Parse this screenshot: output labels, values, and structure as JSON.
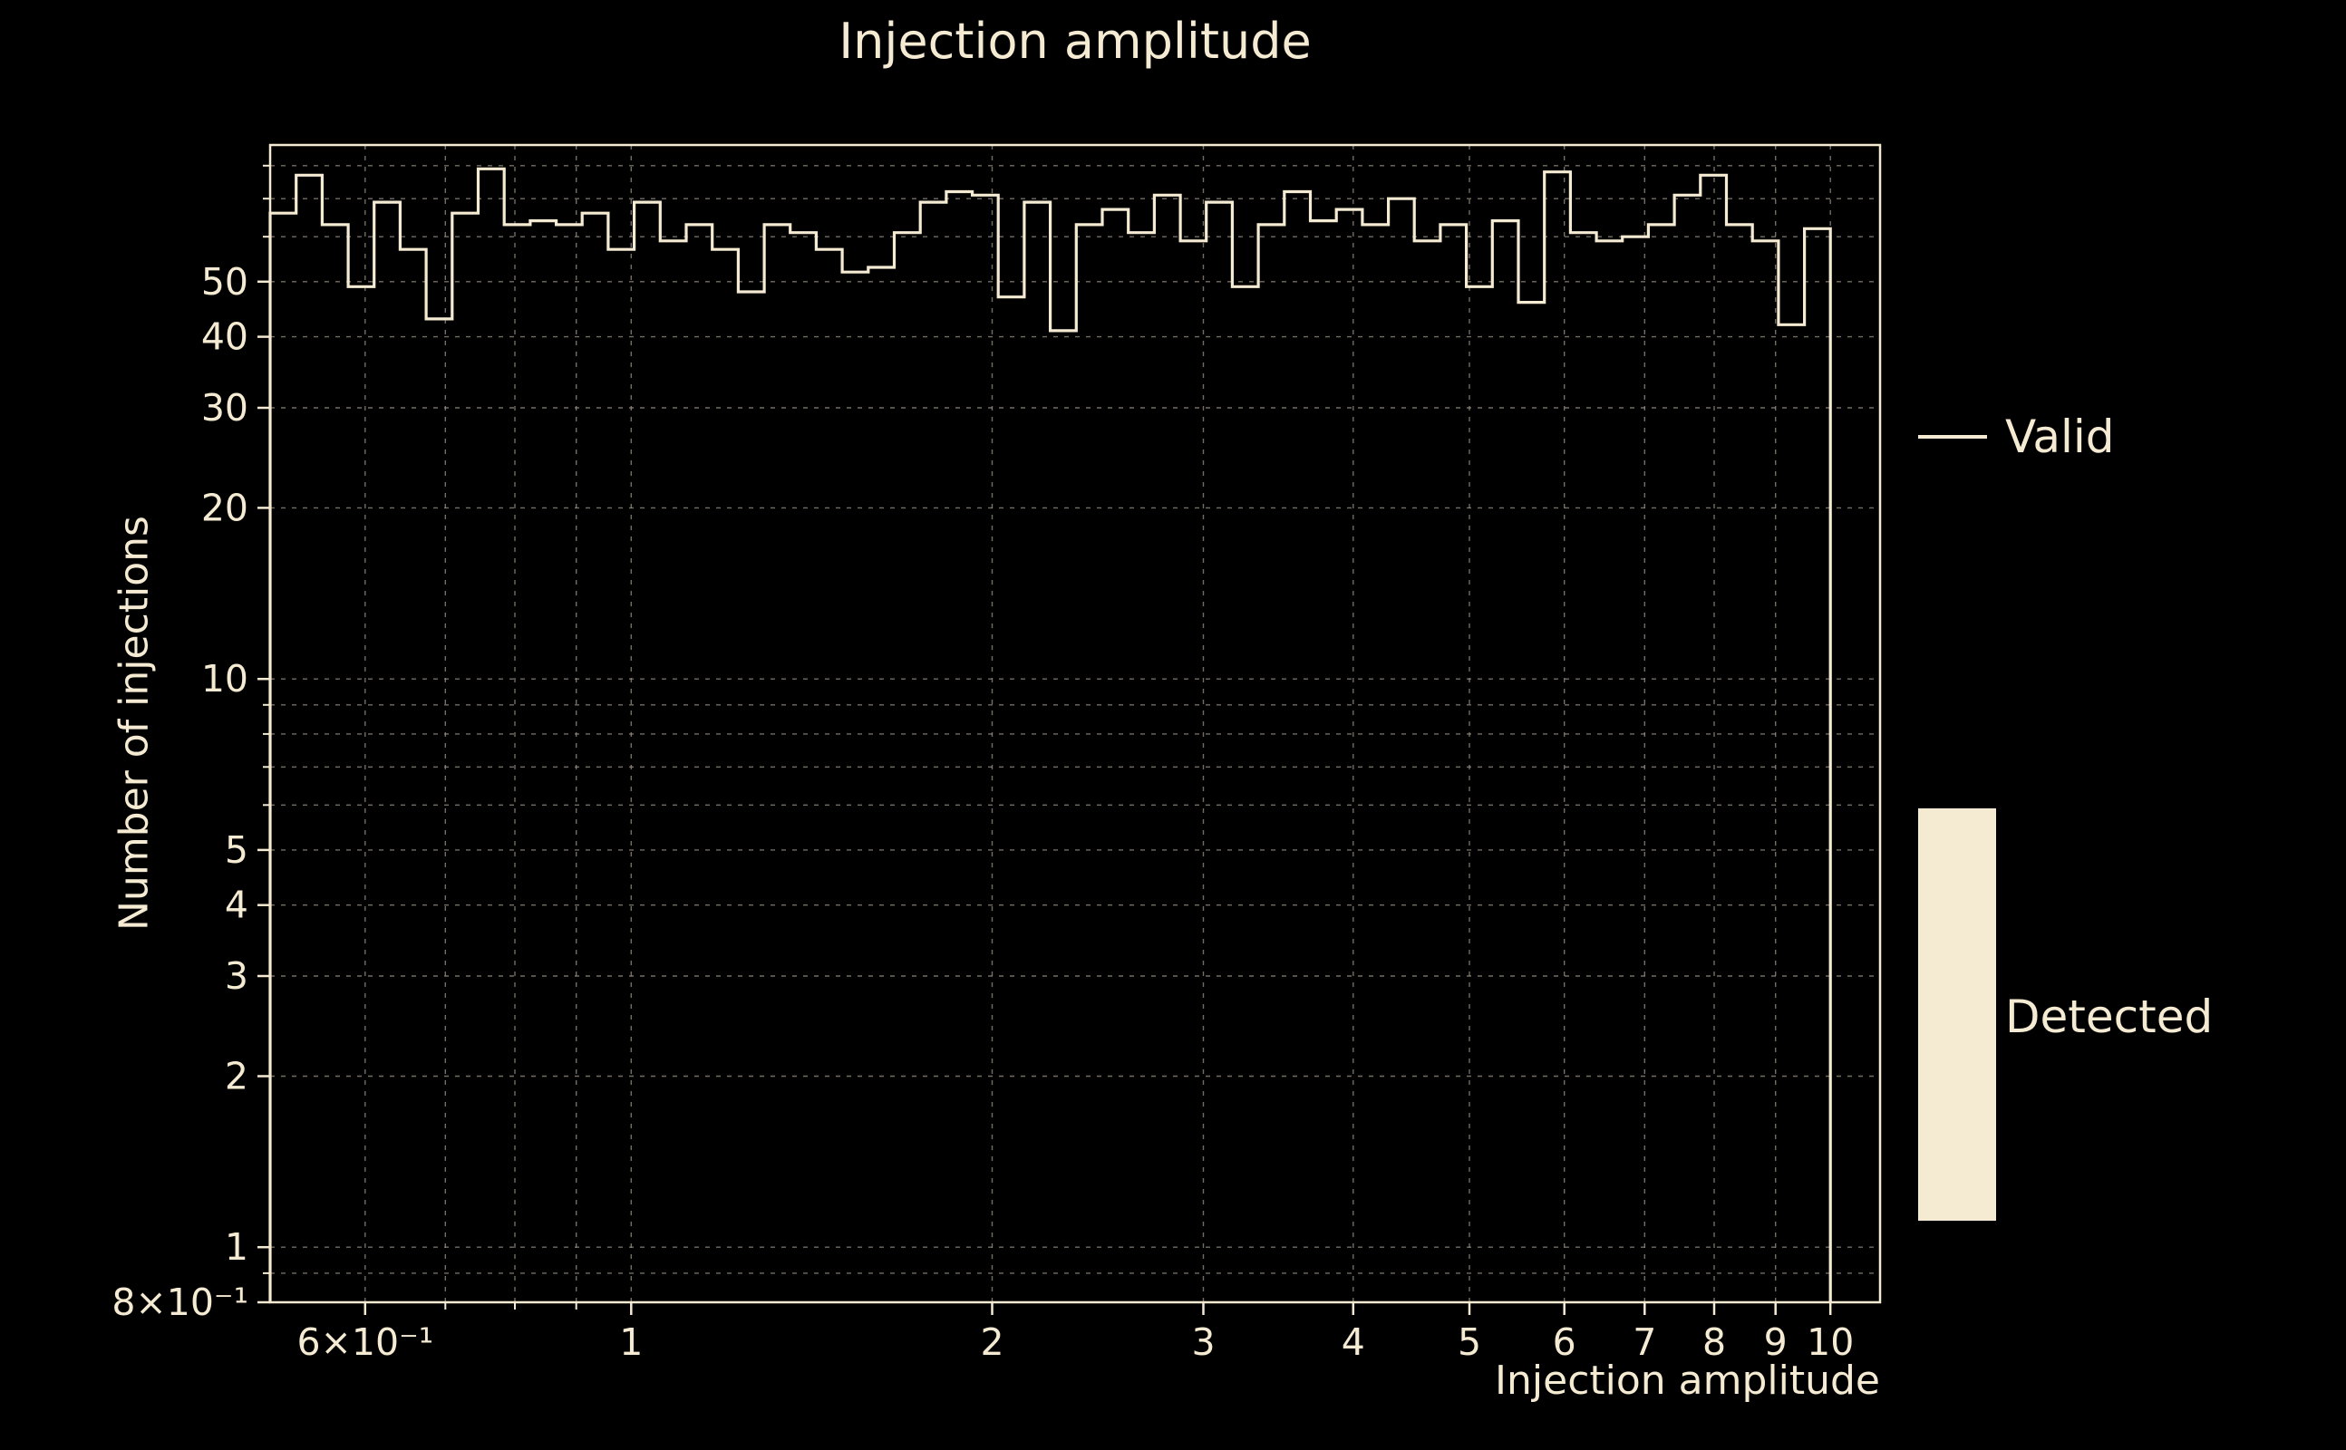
{
  "title": "Injection amplitude",
  "axes": {
    "xlabel": "Injection amplitude",
    "ylabel": "Number of injections",
    "x_scale": "log",
    "y_scale": "log",
    "xlim": [
      0.5,
      11.0
    ],
    "ylim": [
      0.8,
      87
    ],
    "x_major_ticks": [
      {
        "v": 0.6,
        "label": "6×10⁻¹"
      },
      {
        "v": 1,
        "label": "1"
      },
      {
        "v": 2,
        "label": "2"
      },
      {
        "v": 3,
        "label": "3"
      },
      {
        "v": 4,
        "label": "4"
      },
      {
        "v": 5,
        "label": "5"
      },
      {
        "v": 6,
        "label": "6"
      },
      {
        "v": 7,
        "label": "7"
      },
      {
        "v": 8,
        "label": "8"
      },
      {
        "v": 9,
        "label": "9"
      },
      {
        "v": 10,
        "label": "10"
      }
    ],
    "x_minor_ticks": [
      0.7,
      0.8,
      0.9
    ],
    "y_major_ticks": [
      {
        "v": 0.8,
        "label": "8×10⁻¹"
      },
      {
        "v": 1,
        "label": "1"
      },
      {
        "v": 2,
        "label": "2"
      },
      {
        "v": 3,
        "label": "3"
      },
      {
        "v": 4,
        "label": "4"
      },
      {
        "v": 5,
        "label": "5"
      },
      {
        "v": 10,
        "label": "10"
      },
      {
        "v": 20,
        "label": "20"
      },
      {
        "v": 30,
        "label": "30"
      },
      {
        "v": 40,
        "label": "40"
      },
      {
        "v": 50,
        "label": "50"
      }
    ],
    "y_minor_ticks": [
      0.9,
      6,
      7,
      8,
      9,
      60,
      70,
      80
    ],
    "x_grid": [
      0.6,
      0.7,
      0.8,
      0.9,
      1,
      2,
      3,
      4,
      5,
      6,
      7,
      8,
      9,
      10
    ],
    "y_grid": [
      0.9,
      1,
      2,
      3,
      4,
      5,
      6,
      7,
      8,
      9,
      10,
      20,
      30,
      40,
      50,
      60,
      70,
      80
    ]
  },
  "legend": {
    "entries": [
      {
        "label": "Valid",
        "type": "line"
      },
      {
        "label": "Detected",
        "type": "patch"
      }
    ]
  },
  "colors": {
    "background": "#000000",
    "foreground": "#f5ead2",
    "grid": "#9b9384"
  },
  "chart_data": {
    "type": "bar",
    "subtype": "step-histogram",
    "title": "Injection amplitude",
    "xlabel": "Injection amplitude",
    "ylabel": "Number of injections",
    "x_scale": "log",
    "y_scale": "log",
    "xlim": [
      0.5,
      11.0
    ],
    "ylim": [
      0.8,
      87
    ],
    "grid": true,
    "legend_position": "right",
    "legend_entries": [
      "Valid",
      "Detected"
    ],
    "bins": {
      "min": 0.5,
      "max": 10,
      "count": 60,
      "spacing": "log"
    },
    "series": [
      {
        "name": "Valid",
        "counts": [
          66,
          77,
          63,
          49,
          69,
          57,
          43,
          66,
          79,
          63,
          64,
          63,
          66,
          57,
          69,
          59,
          63,
          57,
          48,
          63,
          61,
          57,
          52,
          53,
          61,
          69,
          72,
          71,
          47,
          69,
          41,
          63,
          67,
          61,
          71,
          59,
          69,
          49,
          63,
          72,
          64,
          67,
          63,
          70,
          59,
          63,
          49,
          64,
          46,
          78,
          61,
          59,
          60,
          63,
          71,
          77,
          63,
          59,
          42,
          62
        ]
      }
    ]
  }
}
